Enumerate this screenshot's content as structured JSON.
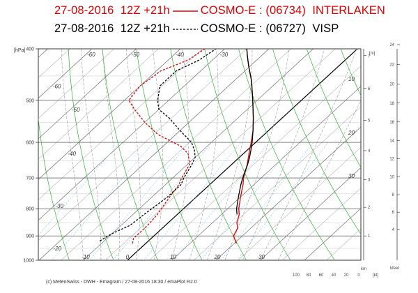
{
  "header": {
    "line1": {
      "date": "27-08-2016",
      "run": "12Z +21h",
      "model": "COSMO-E :",
      "station": "(06734)",
      "name": "INTERLAKEN",
      "color": "#e00000",
      "style": "solid"
    },
    "line2": {
      "date": "27-08-2016",
      "run": "12Z +21h",
      "model": "COSMO-E :",
      "station": "(06727)",
      "name": "VISP",
      "color": "#000000",
      "style": "dashed"
    }
  },
  "footer": "(c) MeteoSwiss - DWH - Emagram / 27-08-2016 18:30 / emaPlot R2.0",
  "colors": {
    "isotherm": "#555555",
    "dry_adiabat": "#30b030",
    "moist_adiabat": "#999999",
    "mixing_ratio": "#7fc8e8",
    "zero_isotherm": "#000000"
  },
  "chart_data": {
    "type": "line",
    "y_axis": {
      "unit_label": "[hPa]",
      "ticks": [
        "400",
        "500",
        "600",
        "700",
        "800",
        "900",
        "1000"
      ],
      "ylim": [
        1000,
        400
      ],
      "scale": "log"
    },
    "x_axis": {
      "unit_label": "[°C]",
      "ticks": [
        "-10",
        "0",
        "10",
        "20",
        "30"
      ],
      "xlim": [
        -20,
        40
      ]
    },
    "right_height_m": {
      "unit_label": "[m]",
      "ticks": [
        "1",
        "2",
        "3",
        "4",
        "5",
        "6",
        "7"
      ]
    },
    "right_height_kfeet": {
      "unit_label": "kfeet",
      "ticks": [
        "4",
        "6",
        "8",
        "10",
        "12",
        "14",
        "16",
        "18",
        "20",
        "22",
        "24"
      ]
    },
    "wind_axis": {
      "unit_label": "km",
      "ticks": [
        "100",
        "80",
        "60",
        "40",
        "20",
        "0"
      ],
      "kt_label": "[kt]"
    },
    "isotherm_labels": [
      "-60",
      "-50",
      "-40",
      "-30",
      "-60",
      "-50",
      "-40",
      "-30",
      "-20",
      "-10",
      "0",
      "10",
      "20",
      "30"
    ],
    "adiabat_labels": [
      "10",
      "20",
      "30"
    ],
    "series": [
      {
        "name": "INTERLAKEN",
        "variable": "temperature",
        "color": "#e00000",
        "style": "solid",
        "p": [
          930,
          900,
          870,
          850,
          820,
          800,
          760,
          720,
          700,
          660,
          620,
          600,
          570,
          540,
          500,
          460,
          430,
          410,
          400
        ],
        "t": [
          20.5,
          18.0,
          17.0,
          15.5,
          14.0,
          12.5,
          10.0,
          7.5,
          6.0,
          3.5,
          0.5,
          -1.0,
          -3.5,
          -6.5,
          -11.0,
          -16.0,
          -20.5,
          -23.5,
          -25.0
        ]
      },
      {
        "name": "INTERLAKEN",
        "variable": "dewpoint",
        "color": "#e00000",
        "style": "dashed",
        "p": [
          930,
          910,
          880,
          860,
          820,
          800,
          760,
          720,
          700,
          660,
          630,
          610,
          580,
          550,
          520,
          500,
          470,
          440,
          420,
          400
        ],
        "t": [
          -3.0,
          -4.0,
          -4.0,
          -4.0,
          -4.5,
          -5.0,
          -6.0,
          -7.0,
          -8.0,
          -9.5,
          -12.5,
          -16.0,
          -24.0,
          -30.0,
          -35.5,
          -39.0,
          -40.0,
          -39.0,
          -35.5,
          -34.5
        ]
      },
      {
        "name": "VISP",
        "variable": "temperature",
        "color": "#000000",
        "style": "solid",
        "p": [
          820,
          800,
          760,
          720,
          700,
          660,
          640,
          620,
          600,
          570,
          540,
          500,
          460,
          430,
          410,
          400
        ],
        "t": [
          13.5,
          12.0,
          9.5,
          7.0,
          5.8,
          3.6,
          2.3,
          0.8,
          -0.8,
          -3.5,
          -6.5,
          -11.0,
          -16.0,
          -20.5,
          -23.5,
          -25.0
        ]
      },
      {
        "name": "VISP",
        "variable": "dewpoint",
        "color": "#000000",
        "style": "dashed",
        "p": [
          920,
          890,
          860,
          820,
          790,
          760,
          720,
          700,
          660,
          640,
          620,
          600,
          570,
          540,
          520,
          500,
          470,
          440,
          420,
          400
        ],
        "t": [
          -11.0,
          -10.0,
          -8.0,
          -7.5,
          -7.0,
          -6.5,
          -6.5,
          -7.5,
          -9.0,
          -10.0,
          -12.0,
          -14.5,
          -20.0,
          -25.5,
          -30.0,
          -32.5,
          -35.5,
          -35.5,
          -33.0,
          -32.0
        ]
      }
    ]
  }
}
